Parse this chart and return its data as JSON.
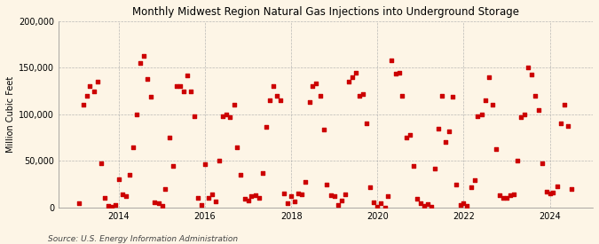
{
  "title": "Monthly Midwest Region Natural Gas Injections into Underground Storage",
  "ylabel": "Million Cubic Feet",
  "source": "Source: U.S. Energy Information Administration",
  "background_color": "#FDF5E6",
  "plot_bg_color": "#FDF5E6",
  "marker_color": "#CC0000",
  "marker": "s",
  "marker_size": 3.5,
  "ylim": [
    0,
    200000
  ],
  "yticks": [
    0,
    50000,
    100000,
    150000,
    200000
  ],
  "ytick_labels": [
    "0",
    "50,000",
    "100,000",
    "150,000",
    "200,000"
  ],
  "xtick_years": [
    2014,
    2016,
    2018,
    2020,
    2022,
    2024
  ],
  "xlim": [
    2012.6,
    2025.0
  ],
  "data": [
    [
      2013.08,
      5000
    ],
    [
      2013.17,
      110000
    ],
    [
      2013.25,
      120000
    ],
    [
      2013.33,
      130000
    ],
    [
      2013.42,
      125000
    ],
    [
      2013.5,
      135000
    ],
    [
      2013.58,
      48000
    ],
    [
      2013.67,
      10000
    ],
    [
      2013.75,
      2000
    ],
    [
      2013.83,
      1000
    ],
    [
      2013.92,
      3000
    ],
    [
      2014.0,
      30000
    ],
    [
      2014.08,
      14000
    ],
    [
      2014.17,
      12000
    ],
    [
      2014.25,
      35000
    ],
    [
      2014.33,
      65000
    ],
    [
      2014.42,
      100000
    ],
    [
      2014.5,
      155000
    ],
    [
      2014.58,
      163000
    ],
    [
      2014.67,
      138000
    ],
    [
      2014.75,
      119000
    ],
    [
      2014.83,
      6000
    ],
    [
      2014.92,
      5000
    ],
    [
      2015.0,
      2000
    ],
    [
      2015.08,
      20000
    ],
    [
      2015.17,
      75000
    ],
    [
      2015.25,
      45000
    ],
    [
      2015.33,
      130000
    ],
    [
      2015.42,
      130000
    ],
    [
      2015.5,
      125000
    ],
    [
      2015.58,
      142000
    ],
    [
      2015.67,
      125000
    ],
    [
      2015.75,
      98000
    ],
    [
      2015.83,
      10000
    ],
    [
      2015.92,
      3000
    ],
    [
      2016.0,
      47000
    ],
    [
      2016.08,
      10000
    ],
    [
      2016.17,
      14000
    ],
    [
      2016.25,
      7000
    ],
    [
      2016.33,
      50000
    ],
    [
      2016.42,
      98000
    ],
    [
      2016.5,
      100000
    ],
    [
      2016.58,
      97000
    ],
    [
      2016.67,
      110000
    ],
    [
      2016.75,
      65000
    ],
    [
      2016.83,
      35000
    ],
    [
      2016.92,
      9000
    ],
    [
      2017.0,
      8000
    ],
    [
      2017.08,
      12000
    ],
    [
      2017.17,
      13000
    ],
    [
      2017.25,
      10000
    ],
    [
      2017.33,
      37000
    ],
    [
      2017.42,
      87000
    ],
    [
      2017.5,
      115000
    ],
    [
      2017.58,
      130000
    ],
    [
      2017.67,
      120000
    ],
    [
      2017.75,
      115000
    ],
    [
      2017.83,
      15000
    ],
    [
      2017.92,
      5000
    ],
    [
      2018.0,
      12000
    ],
    [
      2018.08,
      7000
    ],
    [
      2018.17,
      15000
    ],
    [
      2018.25,
      14000
    ],
    [
      2018.33,
      28000
    ],
    [
      2018.42,
      113000
    ],
    [
      2018.5,
      130000
    ],
    [
      2018.58,
      133000
    ],
    [
      2018.67,
      120000
    ],
    [
      2018.75,
      84000
    ],
    [
      2018.83,
      25000
    ],
    [
      2018.92,
      13000
    ],
    [
      2019.0,
      12000
    ],
    [
      2019.08,
      3000
    ],
    [
      2019.17,
      8000
    ],
    [
      2019.25,
      14000
    ],
    [
      2019.33,
      135000
    ],
    [
      2019.42,
      140000
    ],
    [
      2019.5,
      145000
    ],
    [
      2019.58,
      120000
    ],
    [
      2019.67,
      122000
    ],
    [
      2019.75,
      90000
    ],
    [
      2019.83,
      22000
    ],
    [
      2019.92,
      6000
    ],
    [
      2020.0,
      1000
    ],
    [
      2020.08,
      5000
    ],
    [
      2020.17,
      0
    ],
    [
      2020.25,
      12000
    ],
    [
      2020.33,
      158000
    ],
    [
      2020.42,
      144000
    ],
    [
      2020.5,
      145000
    ],
    [
      2020.58,
      120000
    ],
    [
      2020.67,
      75000
    ],
    [
      2020.75,
      78000
    ],
    [
      2020.83,
      45000
    ],
    [
      2020.92,
      9000
    ],
    [
      2021.0,
      5000
    ],
    [
      2021.08,
      2000
    ],
    [
      2021.17,
      4000
    ],
    [
      2021.25,
      1000
    ],
    [
      2021.33,
      42000
    ],
    [
      2021.42,
      85000
    ],
    [
      2021.5,
      120000
    ],
    [
      2021.58,
      70000
    ],
    [
      2021.67,
      82000
    ],
    [
      2021.75,
      119000
    ],
    [
      2021.83,
      25000
    ],
    [
      2021.92,
      3000
    ],
    [
      2022.0,
      5000
    ],
    [
      2022.08,
      2000
    ],
    [
      2022.17,
      22000
    ],
    [
      2022.25,
      29000
    ],
    [
      2022.33,
      98000
    ],
    [
      2022.42,
      100000
    ],
    [
      2022.5,
      115000
    ],
    [
      2022.58,
      140000
    ],
    [
      2022.67,
      110000
    ],
    [
      2022.75,
      63000
    ],
    [
      2022.83,
      13000
    ],
    [
      2022.92,
      10000
    ],
    [
      2023.0,
      10000
    ],
    [
      2023.08,
      13000
    ],
    [
      2023.17,
      14000
    ],
    [
      2023.25,
      50000
    ],
    [
      2023.33,
      97000
    ],
    [
      2023.42,
      100000
    ],
    [
      2023.5,
      150000
    ],
    [
      2023.58,
      143000
    ],
    [
      2023.67,
      120000
    ],
    [
      2023.75,
      105000
    ],
    [
      2023.83,
      48000
    ],
    [
      2023.92,
      17000
    ],
    [
      2024.0,
      15000
    ],
    [
      2024.08,
      16000
    ],
    [
      2024.17,
      23000
    ],
    [
      2024.25,
      90000
    ],
    [
      2024.33,
      110000
    ],
    [
      2024.42,
      88000
    ],
    [
      2024.5,
      20000
    ]
  ]
}
